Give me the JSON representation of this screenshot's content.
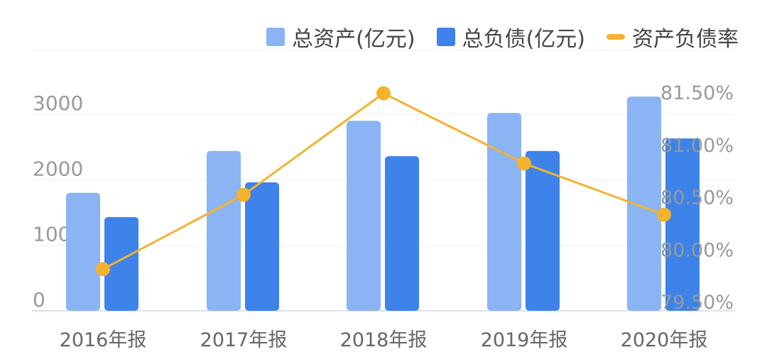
{
  "chart_data": {
    "type": "bar+line",
    "categories": [
      "2016年报",
      "2017年报",
      "2018年报",
      "2019年报",
      "2020年报"
    ],
    "series": [
      {
        "name": "总资产(亿元)",
        "type": "bar",
        "axis": "left",
        "color": "#8ab4f3",
        "values": [
          1800,
          2440,
          2900,
          3020,
          3270
        ]
      },
      {
        "name": "总负债(亿元)",
        "type": "bar",
        "axis": "left",
        "color": "#3d83ea",
        "values": [
          1430,
          1960,
          2360,
          2440,
          2630
        ]
      },
      {
        "name": "资产负债率",
        "type": "line",
        "axis": "right",
        "color": "#f5b22e",
        "values": [
          79.81,
          80.52,
          81.49,
          80.82,
          80.33
        ]
      }
    ],
    "y_left": {
      "ticks": [
        "0",
        "1000",
        "2000",
        "3000"
      ],
      "tick_values": [
        0,
        1000,
        2000,
        3000
      ],
      "lim": [
        0,
        3000
      ]
    },
    "y_right": {
      "ticks": [
        "79.50%",
        "80.00%",
        "80.50%",
        "81.00%",
        "81.50%"
      ],
      "tick_values": [
        79.5,
        80.0,
        80.5,
        81.0,
        81.5
      ],
      "lim": [
        79.5,
        81.5
      ]
    },
    "grid": true,
    "legend_position": "top-right"
  }
}
